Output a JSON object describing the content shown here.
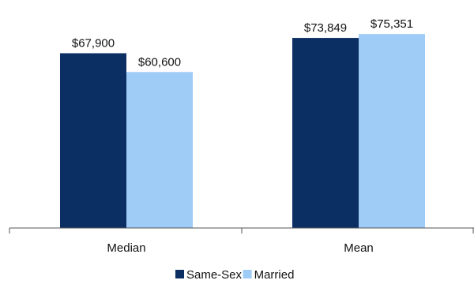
{
  "chart_data": {
    "type": "bar",
    "categories": [
      "Median",
      "Mean"
    ],
    "series": [
      {
        "name": "Same-Sex",
        "color": "#0b2f63",
        "values": [
          67900,
          73849
        ],
        "labels": [
          "$67,900",
          "$73,849"
        ]
      },
      {
        "name": "Married",
        "color": "#9fcbf7",
        "values": [
          60600,
          75351
        ],
        "labels": [
          "$60,600",
          "$75,351"
        ]
      }
    ],
    "ylim": [
      0,
      80000
    ],
    "grid": false,
    "legend_position": "bottom"
  }
}
